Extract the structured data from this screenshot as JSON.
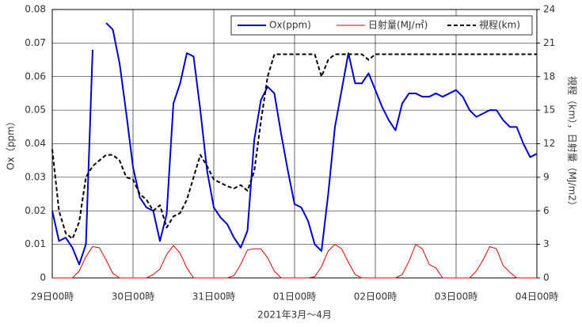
{
  "chart_data": {
    "type": "line",
    "x_label": "2021年3月～4月",
    "y_label": "Ox（ppm）",
    "y2_label": "視程（km），日射量（MJ/m2）",
    "x": [
      0,
      2,
      4,
      6,
      8,
      10,
      12,
      14,
      16,
      18,
      20,
      22,
      24,
      26,
      28,
      30,
      32,
      34,
      36,
      38,
      40,
      42,
      44,
      46,
      48,
      50,
      52,
      54,
      56,
      58,
      60,
      62,
      64,
      66,
      68,
      70,
      72,
      74,
      76,
      78,
      80,
      82,
      84,
      86,
      88,
      90,
      92,
      94,
      96,
      98,
      100,
      102,
      104,
      106,
      108,
      110,
      112,
      114,
      116,
      118,
      120,
      122,
      124,
      126,
      128,
      130,
      132,
      134,
      136,
      138,
      140,
      142,
      144
    ],
    "xlim": [
      0,
      144
    ],
    "xticks": [
      {
        "value": 0,
        "label": "29日00時"
      },
      {
        "value": 24,
        "label": "30日00時"
      },
      {
        "value": 48,
        "label": "31日00時"
      },
      {
        "value": 72,
        "label": "01日00時"
      },
      {
        "value": 96,
        "label": "02日00時"
      },
      {
        "value": 120,
        "label": "03日00時"
      },
      {
        "value": 144,
        "label": "04日00時"
      }
    ],
    "ylim": [
      0,
      0.08
    ],
    "yticks": [
      0,
      0.01,
      0.02,
      0.03,
      0.04,
      0.05,
      0.06,
      0.07,
      0.08
    ],
    "y2lim": [
      0,
      24
    ],
    "y2ticks": [
      0,
      3,
      6,
      9,
      12,
      15,
      18,
      21,
      24
    ],
    "grid": true,
    "legend": "top-right",
    "series": [
      {
        "name": "Ox(ppm)",
        "color": "#0000cc",
        "linestyle": "solid",
        "width": 2,
        "values": [
          0.02,
          0.011,
          0.012,
          0.009,
          0.004,
          0.01,
          0.068,
          null,
          0.076,
          0.074,
          0.064,
          0.049,
          0.033,
          0.024,
          0.021,
          0.02,
          0.011,
          0.019,
          0.052,
          0.058,
          0.067,
          0.066,
          0.05,
          0.032,
          0.021,
          0.018,
          0.016,
          0.012,
          0.009,
          0.014,
          0.041,
          0.053,
          0.057,
          0.055,
          0.043,
          0.032,
          0.022,
          0.021,
          0.017,
          0.01,
          0.008,
          0.025,
          0.045,
          0.056,
          0.067,
          0.058,
          0.058,
          0.061,
          0.056,
          0.051,
          0.047,
          0.044,
          0.052,
          0.055,
          0.055,
          0.054,
          0.054,
          0.055,
          0.054,
          0.055,
          0.056,
          0.054,
          0.05,
          0.048,
          0.049,
          0.05,
          0.05,
          0.047,
          0.045,
          0.045,
          0.04,
          0.036,
          0.037
        ]
      },
      {
        "name": "日射量(MJ/㎡)",
        "color": "#e00000",
        "linestyle": "solid",
        "width": 1,
        "axis": "y2",
        "values": [
          0,
          0,
          0,
          0,
          0.6,
          1.9,
          2.8,
          2.7,
          1.6,
          0.4,
          0,
          0,
          0,
          0,
          0,
          0.3,
          0.8,
          2.1,
          2.9,
          2.2,
          0.9,
          0,
          0,
          0,
          0,
          0,
          0,
          0.2,
          1.2,
          2.5,
          2.6,
          2.6,
          1.8,
          0.6,
          0,
          0,
          0,
          0,
          0,
          0.1,
          1.0,
          2.4,
          3.0,
          2.6,
          1.4,
          0.3,
          0,
          0,
          0,
          0,
          0,
          0,
          0.3,
          1.5,
          3.0,
          2.6,
          1.2,
          0.9,
          0,
          0,
          0,
          0,
          0,
          0.6,
          1.6,
          2.8,
          2.6,
          1.1,
          0.5,
          0,
          0,
          0,
          0
        ]
      },
      {
        "name": "視程(km)",
        "color": "#000000",
        "linestyle": "dashed",
        "width": 2,
        "axis": "y2",
        "values": [
          11.5,
          6,
          4,
          3.5,
          5,
          9,
          10,
          10.5,
          11,
          11,
          10.5,
          9,
          8.8,
          7.5,
          7,
          6,
          6.5,
          4.5,
          5.5,
          5.8,
          7,
          9,
          11,
          10,
          8.8,
          8.5,
          8.2,
          8,
          8.3,
          7.8,
          9.5,
          14,
          18,
          20,
          20,
          20,
          20,
          20,
          20,
          20,
          18,
          19.5,
          20,
          20,
          20,
          20,
          20,
          19.5,
          20,
          20,
          20,
          20,
          20,
          20,
          20,
          20,
          20,
          20,
          20,
          20,
          20,
          20,
          20,
          20,
          20,
          20,
          20,
          20,
          20,
          20,
          20,
          20,
          20
        ]
      }
    ]
  }
}
